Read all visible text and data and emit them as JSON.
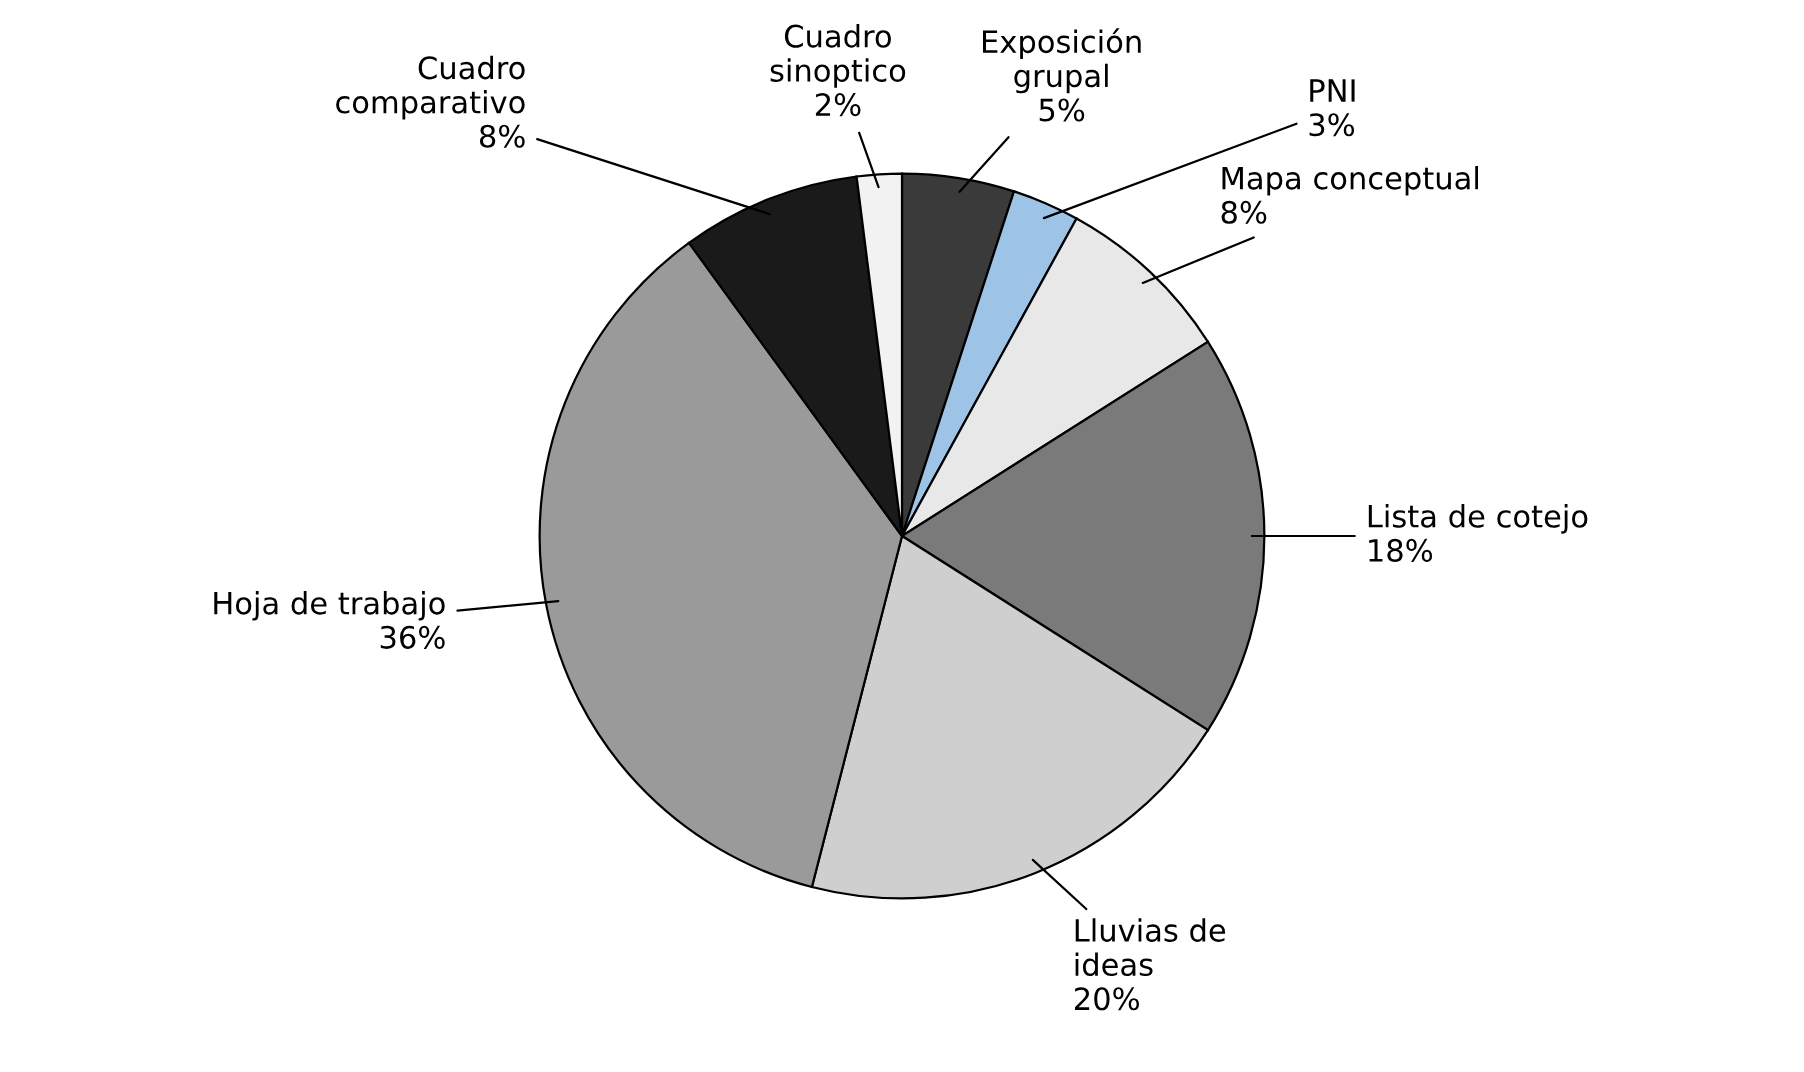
{
  "chart_data": {
    "type": "pie",
    "categories": [
      "Exposición grupal",
      "PNI",
      "Mapa conceptual",
      "Lista de cotejo",
      "Lluvias de ideas",
      "Hoja de trabajo",
      "Cuadro comparativo",
      "Cuadro sinoptico"
    ],
    "values": [
      5,
      3,
      8,
      18,
      20,
      36,
      8,
      2
    ],
    "value_labels": [
      "5%",
      "3%",
      "8%",
      "18%",
      "20%",
      "36%",
      "8%",
      "2%"
    ],
    "colors": [
      "#3a3a3a",
      "#9dc3e6",
      "#e8e8e8",
      "#7a7a7a",
      "#cfcfcf",
      "#9a9a9a",
      "#1a1a1a",
      "#f2f2f2"
    ],
    "legend": false
  }
}
